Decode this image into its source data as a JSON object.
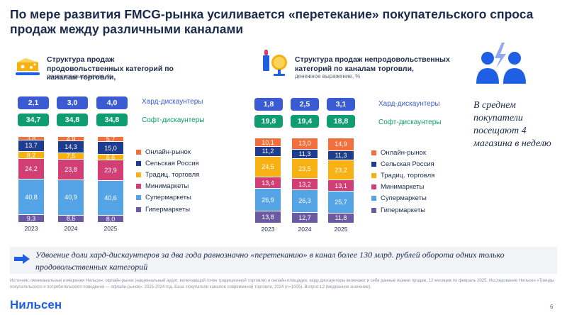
{
  "title": "По мере развития FMCG-рынка усиливается «перетекание» покупательского спроса продаж между различными каналами",
  "colors": {
    "hard": "#3a5bd1",
    "soft": "#0f9c6f",
    "online": "#f2703b",
    "rural": "#1f3d8f",
    "traditional": "#f7b112",
    "mini": "#d13f75",
    "super": "#55a4e6",
    "hyper": "#6b5aa1"
  },
  "panels": [
    {
      "title": "Структура продаж продовольственных категорий по каналам торговли,",
      "subtitle": "денежное выражение, %",
      "hard_label": "Хард-дискаунтеры",
      "soft_label": "Софт-дискаунтеры",
      "hard_values": [
        "2,1",
        "3,0",
        "4,0"
      ],
      "soft_values": [
        "34,7",
        "34,8",
        "34,8"
      ]
    },
    {
      "title": "Структура продаж непродовольственных категорий по каналам торговли,",
      "subtitle": "денежное выражение, %",
      "hard_label": "Хард-дискаунтеры",
      "soft_label": "Софт-дискаунтеры",
      "hard_values": [
        "1,8",
        "2,5",
        "3,1"
      ],
      "soft_values": [
        "19,8",
        "19,4",
        "18,8"
      ]
    }
  ],
  "chart_data": [
    {
      "type": "bar",
      "stacked": true,
      "categories": [
        "2023",
        "2024",
        "2025"
      ],
      "series": [
        {
          "name": "Гипермаркеты",
          "values": [
            9.3,
            8.6,
            8.0
          ],
          "labels": [
            "9,3",
            "8,6",
            "8,0"
          ],
          "color": "#6b5aa1"
        },
        {
          "name": "Супермаркеты",
          "values": [
            40.8,
            40.9,
            40.6
          ],
          "labels": [
            "40,8",
            "40,9",
            "40,6"
          ],
          "color": "#55a4e6"
        },
        {
          "name": "Минимаркеты",
          "values": [
            24.2,
            23.8,
            23.9
          ],
          "labels": [
            "24,2",
            "23,8",
            "23,9"
          ],
          "color": "#d13f75"
        },
        {
          "name": "Традиц. торговля",
          "values": [
            8.2,
            7.5,
            6.6
          ],
          "labels": [
            "8,2",
            "7,5",
            "6,6"
          ],
          "color": "#f7b112"
        },
        {
          "name": "Сельская Россия",
          "values": [
            13.7,
            14.3,
            15.0
          ],
          "labels": [
            "13,7",
            "14,3",
            "15,0"
          ],
          "color": "#1f3d8f"
        },
        {
          "name": "Онлайн-рынок",
          "values": [
            3.8,
            4.9,
            5.7
          ],
          "labels": [
            "3,8",
            "4,9",
            "5,7"
          ],
          "color": "#f2703b"
        }
      ]
    },
    {
      "type": "bar",
      "stacked": true,
      "categories": [
        "2023",
        "2024",
        "2025"
      ],
      "series": [
        {
          "name": "Гипермаркеты",
          "values": [
            13.8,
            12.7,
            11.8
          ],
          "labels": [
            "13,8",
            "12,7",
            "11,8"
          ],
          "color": "#6b5aa1"
        },
        {
          "name": "Супермаркеты",
          "values": [
            26.9,
            26.3,
            25.7
          ],
          "labels": [
            "26,9",
            "26,3",
            "25,7"
          ],
          "color": "#55a4e6"
        },
        {
          "name": "Минимаркеты",
          "values": [
            13.4,
            13.2,
            13.1
          ],
          "labels": [
            "13,4",
            "13,2",
            "13,1"
          ],
          "color": "#d13f75"
        },
        {
          "name": "Традиц. торговля",
          "values": [
            24.5,
            23.5,
            23.2
          ],
          "labels": [
            "24,5",
            "23,5",
            "23,2"
          ],
          "color": "#f7b112"
        },
        {
          "name": "Сельская Россия",
          "values": [
            11.2,
            11.3,
            11.3
          ],
          "labels": [
            "11,2",
            "11,3",
            "11,3"
          ],
          "color": "#1f3d8f"
        },
        {
          "name": "Онлайн-рынок",
          "values": [
            10.1,
            13.0,
            14.9
          ],
          "labels": [
            "10,1",
            "13,0",
            "14,9"
          ],
          "color": "#f2703b"
        }
      ]
    }
  ],
  "right_text": "В среднем покупатели посещают 4 магазина в неделю",
  "bottom_text": "Удвоение доли хард-дискаунтеров за два года равнозначно «перетеканию» в канал более 130 млрд. рублей оборота одних только продовольственных категорий",
  "source": "Источник: омниканальные измерения Нильсен: офлайн-рынок (национальный аудит, включающий точки традиционной торговли) и онлайн-площадки, хард-дискаунтеры включают в себя данные оценки продаж, 12 месяцев по февраль 2025. Исследование Нильсен «Тренды покупательского и потребительского поведения — офлайн-рынок», 2025-2024 год. База: покупатели каналов современной торговли, 2024 (n=1005). Вопрос L2 (медианное значение).",
  "logo": "Нильсен",
  "page_number": "6"
}
